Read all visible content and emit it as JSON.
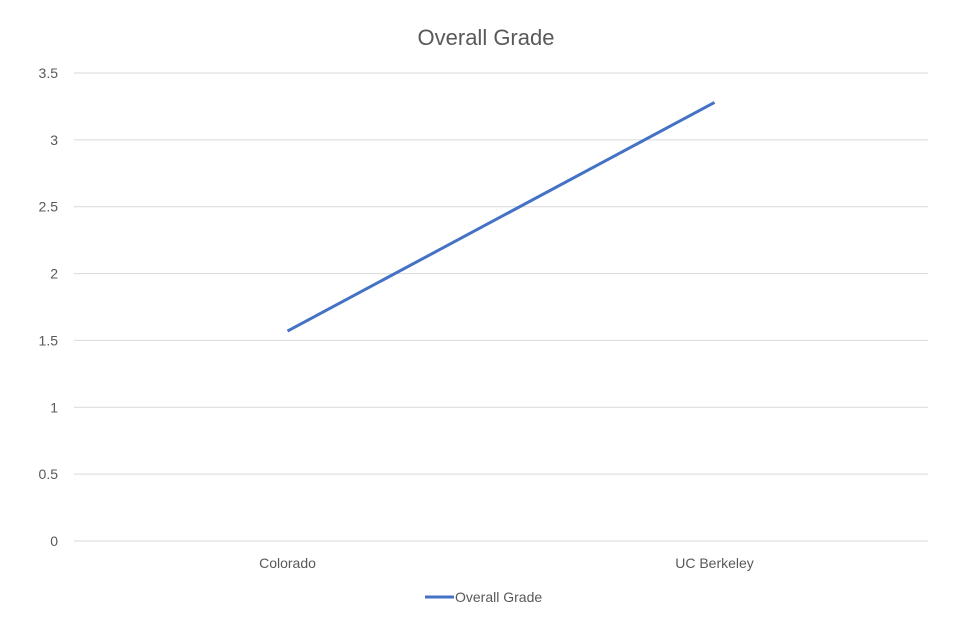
{
  "chart_data": {
    "type": "line",
    "title": "Overall Grade",
    "categories": [
      "Colorado",
      "UC Berkeley"
    ],
    "series": [
      {
        "name": "Overall Grade",
        "values": [
          1.57,
          3.28
        ]
      }
    ],
    "ylim": [
      0,
      3.5
    ],
    "yticks": [
      0,
      0.5,
      1,
      1.5,
      2,
      2.5,
      3,
      3.5
    ],
    "ytick_labels": [
      "0",
      "0.5",
      "1",
      "1.5",
      "2",
      "2.5",
      "3",
      "3.5"
    ],
    "xlabel": "",
    "ylabel": "",
    "grid": true,
    "legend": "bottom",
    "colors": {
      "series": "#4472C4",
      "grid": "#D9D9D9",
      "text": "#595959"
    }
  }
}
